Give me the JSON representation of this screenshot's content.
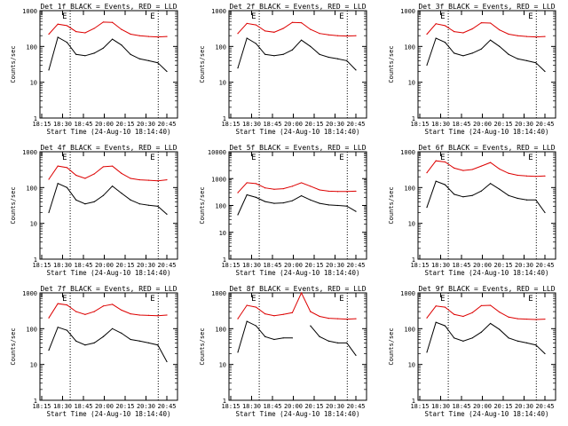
{
  "title_template": "Det {det}f BLACK = Events, RED = LLD",
  "xlabel": "Start Time (24-Aug-10 18:14:40)",
  "ylabel": "Counts/sec",
  "marker_labels": [
    "E",
    "E"
  ],
  "colors": {
    "events": "#000000",
    "lld": "#dd0000",
    "marker": "#000000"
  },
  "chart_data": [
    {
      "type": "line",
      "det": "1",
      "title": "Det 1f BLACK = Events, RED = LLD",
      "x_ticks": [
        "18:15",
        "18:30",
        "18:45",
        "20:00",
        "20:15",
        "20:30",
        "20:45"
      ],
      "y_ticks": [
        "1",
        "10",
        "100",
        "1000"
      ],
      "ylim": [
        1,
        1000
      ],
      "yscale": "log",
      "series": [
        {
          "name": "Events",
          "color": "#000000",
          "values": [
            22,
            180,
            130,
            60,
            55,
            65,
            90,
            160,
            110,
            60,
            45,
            40,
            35,
            20
          ]
        },
        {
          "name": "LLD",
          "color": "#dd0000",
          "values": [
            220,
            420,
            380,
            260,
            240,
            320,
            480,
            470,
            300,
            220,
            200,
            190,
            185,
            190
          ]
        }
      ]
    },
    {
      "type": "line",
      "det": "2",
      "title": "Det 2f BLACK = Events, RED = LLD",
      "x_ticks": [
        "18:15",
        "18:30",
        "18:45",
        "20:00",
        "20:15",
        "20:30",
        "20:45"
      ],
      "y_ticks": [
        "1",
        "10",
        "100",
        "1000"
      ],
      "ylim": [
        1,
        1000
      ],
      "yscale": "log",
      "series": [
        {
          "name": "Events",
          "color": "#000000",
          "values": [
            25,
            170,
            120,
            60,
            55,
            60,
            80,
            150,
            100,
            60,
            50,
            45,
            40,
            22
          ]
        },
        {
          "name": "LLD",
          "color": "#dd0000",
          "values": [
            230,
            440,
            400,
            270,
            250,
            320,
            470,
            460,
            300,
            230,
            210,
            200,
            195,
            200
          ]
        }
      ]
    },
    {
      "type": "line",
      "det": "3",
      "title": "Det 3f BLACK = Events, RED = LLD",
      "x_ticks": [
        "18:15",
        "18:30",
        "18:45",
        "20:00",
        "20:15",
        "20:30",
        "20:45"
      ],
      "y_ticks": [
        "1",
        "10",
        "100",
        "1000"
      ],
      "ylim": [
        1,
        1000
      ],
      "yscale": "log",
      "series": [
        {
          "name": "Events",
          "color": "#000000",
          "values": [
            30,
            170,
            130,
            65,
            55,
            65,
            85,
            150,
            100,
            60,
            45,
            40,
            35,
            20
          ]
        },
        {
          "name": "LLD",
          "color": "#dd0000",
          "values": [
            220,
            430,
            380,
            260,
            240,
            310,
            460,
            450,
            290,
            220,
            200,
            190,
            185,
            190
          ]
        }
      ]
    },
    {
      "type": "line",
      "det": "4",
      "title": "Det 4f BLACK = Events, RED = LLD",
      "x_ticks": [
        "18:15",
        "18:30",
        "18:45",
        "20:00",
        "20:15",
        "20:30",
        "20:45"
      ],
      "y_ticks": [
        "1",
        "10",
        "100",
        "1000"
      ],
      "ylim": [
        1,
        1000
      ],
      "yscale": "log",
      "series": [
        {
          "name": "Events",
          "color": "#000000",
          "values": [
            20,
            130,
            100,
            45,
            35,
            40,
            60,
            110,
            70,
            45,
            35,
            32,
            30,
            18
          ]
        },
        {
          "name": "LLD",
          "color": "#dd0000",
          "values": [
            170,
            400,
            360,
            220,
            180,
            240,
            380,
            400,
            250,
            180,
            165,
            160,
            155,
            165
          ]
        }
      ]
    },
    {
      "type": "line",
      "det": "5",
      "title": "Det 5f BLACK = Events, RED = LLD",
      "x_ticks": [
        "18:15",
        "18:30",
        "18:45",
        "20:00",
        "20:15",
        "20:30",
        "20:45"
      ],
      "y_ticks": [
        "1",
        "10",
        "100",
        "1000"
      ],
      "ylim": [
        1,
        10000
      ],
      "yscale": "log",
      "series": [
        {
          "name": "Events",
          "color": "#000000",
          "values": [
            45,
            250,
            200,
            140,
            120,
            125,
            150,
            230,
            160,
            120,
            105,
            100,
            95,
            60
          ]
        },
        {
          "name": "LLD",
          "color": "#dd0000",
          "values": [
            300,
            700,
            650,
            450,
            400,
            420,
            520,
            700,
            520,
            380,
            340,
            330,
            330,
            340
          ]
        }
      ]
    },
    {
      "type": "line",
      "det": "6",
      "title": "Det 6f BLACK = Events, RED = LLD",
      "x_ticks": [
        "18:15",
        "18:30",
        "18:45",
        "20:00",
        "20:15",
        "20:30",
        "20:45"
      ],
      "y_ticks": [
        "1",
        "10",
        "100",
        "1000"
      ],
      "ylim": [
        1,
        1000
      ],
      "yscale": "log",
      "series": [
        {
          "name": "Events",
          "color": "#000000",
          "values": [
            28,
            150,
            120,
            65,
            55,
            60,
            80,
            130,
            90,
            60,
            50,
            45,
            45,
            20
          ]
        },
        {
          "name": "LLD",
          "color": "#dd0000",
          "values": [
            260,
            560,
            520,
            350,
            300,
            320,
            400,
            500,
            330,
            250,
            220,
            210,
            205,
            210
          ]
        }
      ]
    },
    {
      "type": "line",
      "det": "7",
      "title": "Det 7f BLACK = Events, RED = LLD",
      "x_ticks": [
        "18:15",
        "18:30",
        "18:45",
        "20:00",
        "20:15",
        "20:30",
        "20:45"
      ],
      "y_ticks": [
        "1",
        "10",
        "100",
        "1000"
      ],
      "ylim": [
        1,
        1000
      ],
      "yscale": "log",
      "series": [
        {
          "name": "Events",
          "color": "#000000",
          "values": [
            25,
            110,
            90,
            45,
            35,
            40,
            60,
            100,
            75,
            50,
            45,
            40,
            35,
            12
          ]
        },
        {
          "name": "LLD",
          "color": "#dd0000",
          "values": [
            200,
            500,
            460,
            300,
            250,
            300,
            430,
            480,
            330,
            260,
            240,
            235,
            230,
            240
          ]
        }
      ]
    },
    {
      "type": "line",
      "det": "8",
      "title": "Det 8f BLACK = Events, RED = LLD",
      "x_ticks": [
        "18:15",
        "18:30",
        "18:45",
        "20:00",
        "20:15",
        "20:30",
        "20:45"
      ],
      "y_ticks": [
        "1",
        "10",
        "100",
        "1000"
      ],
      "ylim": [
        1,
        1000
      ],
      "yscale": "log",
      "series": [
        {
          "name": "Events",
          "color": "#000000",
          "values": [
            22,
            160,
            120,
            60,
            50,
            55,
            55,
            null,
            120,
            60,
            45,
            40,
            40,
            18
          ]
        },
        {
          "name": "LLD",
          "color": "#dd0000",
          "values": [
            190,
            450,
            400,
            260,
            230,
            250,
            280,
            1000,
            300,
            220,
            195,
            190,
            185,
            190
          ]
        }
      ]
    },
    {
      "type": "line",
      "det": "9",
      "title": "Det 9f BLACK = Events, RED = LLD",
      "x_ticks": [
        "18:15",
        "18:30",
        "18:45",
        "20:00",
        "20:15",
        "20:30",
        "20:45"
      ],
      "y_ticks": [
        "1",
        "10",
        "100",
        "1000"
      ],
      "ylim": [
        1,
        1000
      ],
      "yscale": "log",
      "series": [
        {
          "name": "Events",
          "color": "#000000",
          "values": [
            22,
            150,
            120,
            55,
            45,
            55,
            80,
            140,
            95,
            55,
            45,
            40,
            35,
            20
          ]
        },
        {
          "name": "LLD",
          "color": "#dd0000",
          "values": [
            200,
            430,
            400,
            250,
            220,
            280,
            440,
            450,
            290,
            210,
            190,
            185,
            180,
            185
          ]
        }
      ]
    }
  ]
}
